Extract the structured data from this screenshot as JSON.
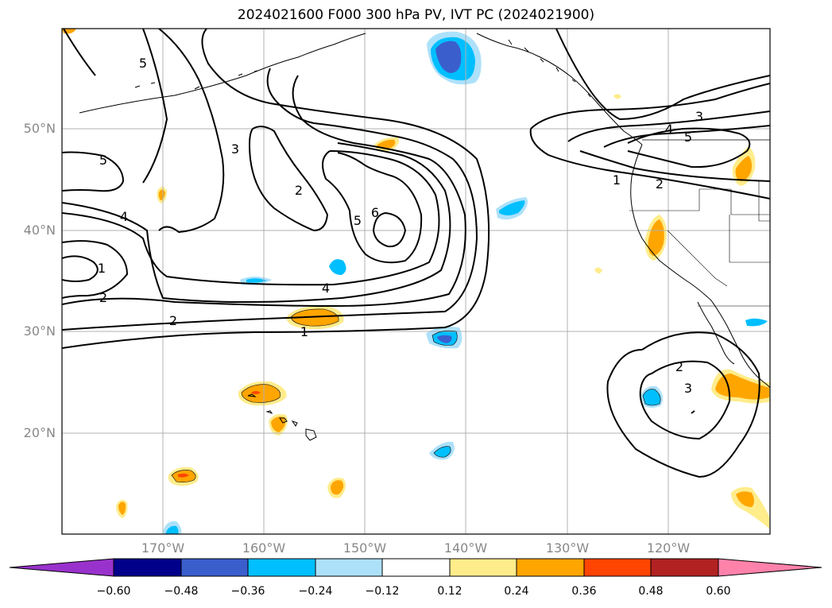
{
  "title": "2024021600 F000 300 hPa PV, IVT PC (2024021900)",
  "map": {
    "lat_labels": [
      "50°N",
      "40°N",
      "30°N",
      "20°N"
    ],
    "lon_labels": [
      "170°W",
      "160°W",
      "150°W",
      "140°W",
      "130°W",
      "120°W"
    ]
  },
  "contour_labels": [
    "5",
    "3",
    "5",
    "4",
    "1",
    "2",
    "2",
    "6",
    "5",
    "4",
    "2",
    "1",
    "4",
    "3",
    "5",
    "1",
    "2",
    "2",
    "3"
  ],
  "colorbar": {
    "tick_labels": [
      "−0.60",
      "−0.48",
      "−0.36",
      "−0.24",
      "−0.12",
      "0.12",
      "0.24",
      "0.36",
      "0.48",
      "0.60"
    ],
    "colors": [
      "#9932CC",
      "#00008B",
      "#3A5FCD",
      "#00BFFF",
      "#ADE1FA",
      "#FFFFFF",
      "#FFEC8B",
      "#FFA500",
      "#FF4500",
      "#B22222",
      "#FF82AB"
    ]
  }
}
